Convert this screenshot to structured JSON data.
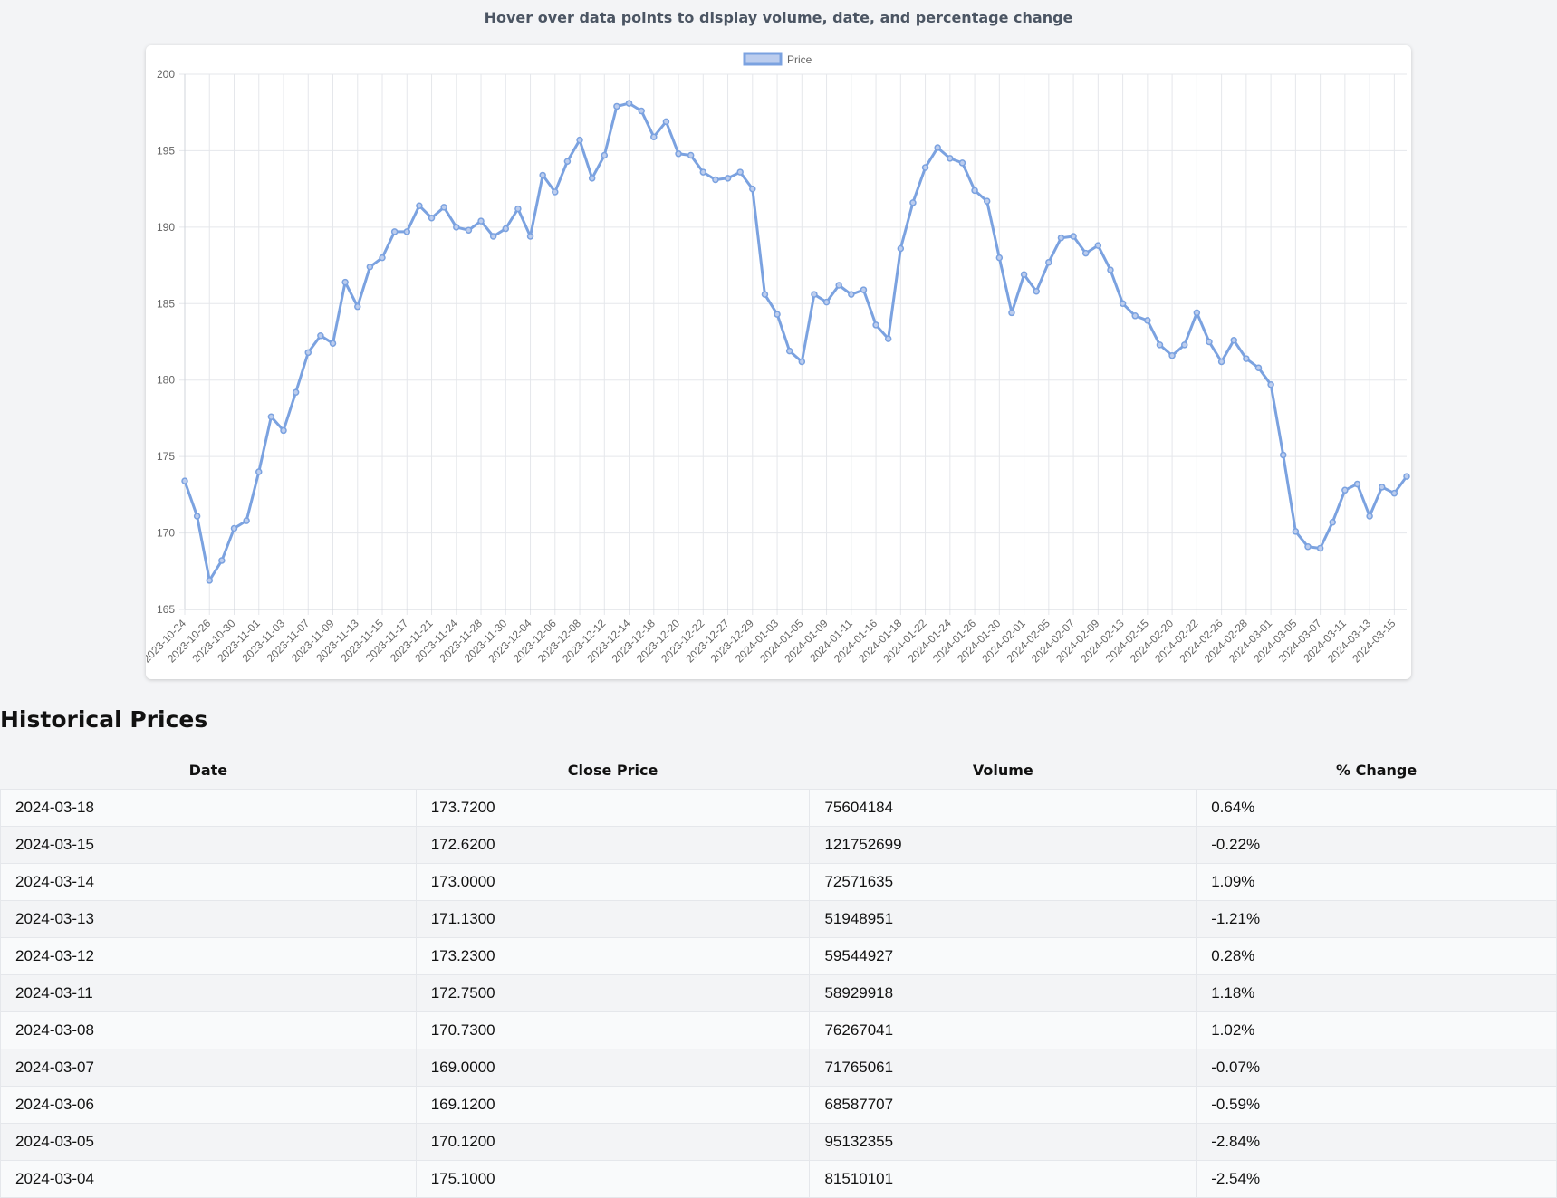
{
  "header": {
    "subtitle": "Hover over data points to display volume, date, and percentage change"
  },
  "section_title": "Historical Prices",
  "colors": {
    "line": "#7ba2e0",
    "legend_fill": "#bccdee",
    "grid": "#e5e7eb"
  },
  "chart_data": {
    "type": "line",
    "series": [
      {
        "name": "Price",
        "x": [
          "2023-10-24",
          "2023-10-25",
          "2023-10-26",
          "2023-10-27",
          "2023-10-30",
          "2023-10-31",
          "2023-11-01",
          "2023-11-02",
          "2023-11-03",
          "2023-11-06",
          "2023-11-07",
          "2023-11-08",
          "2023-11-09",
          "2023-11-10",
          "2023-11-13",
          "2023-11-14",
          "2023-11-15",
          "2023-11-16",
          "2023-11-17",
          "2023-11-20",
          "2023-11-21",
          "2023-11-22",
          "2023-11-24",
          "2023-11-27",
          "2023-11-28",
          "2023-11-29",
          "2023-11-30",
          "2023-12-01",
          "2023-12-04",
          "2023-12-05",
          "2023-12-06",
          "2023-12-07",
          "2023-12-08",
          "2023-12-11",
          "2023-12-12",
          "2023-12-13",
          "2023-12-14",
          "2023-12-15",
          "2023-12-18",
          "2023-12-19",
          "2023-12-20",
          "2023-12-21",
          "2023-12-22",
          "2023-12-26",
          "2023-12-27",
          "2023-12-28",
          "2023-12-29",
          "2024-01-02",
          "2024-01-03",
          "2024-01-04",
          "2024-01-05",
          "2024-01-08",
          "2024-01-09",
          "2024-01-10",
          "2024-01-11",
          "2024-01-12",
          "2024-01-16",
          "2024-01-17",
          "2024-01-18",
          "2024-01-19",
          "2024-01-22",
          "2024-01-23",
          "2024-01-24",
          "2024-01-25",
          "2024-01-26",
          "2024-01-29",
          "2024-01-30",
          "2024-01-31",
          "2024-02-01",
          "2024-02-02",
          "2024-02-05",
          "2024-02-06",
          "2024-02-07",
          "2024-02-08",
          "2024-02-09",
          "2024-02-12",
          "2024-02-13",
          "2024-02-14",
          "2024-02-15",
          "2024-02-16",
          "2024-02-20",
          "2024-02-21",
          "2024-02-22",
          "2024-02-23",
          "2024-02-26",
          "2024-02-27",
          "2024-02-28",
          "2024-02-29",
          "2024-03-01",
          "2024-03-04",
          "2024-03-05",
          "2024-03-06",
          "2024-03-07",
          "2024-03-08",
          "2024-03-11",
          "2024-03-12",
          "2024-03-13",
          "2024-03-14",
          "2024-03-15",
          "2024-03-18"
        ],
        "values": [
          173.4,
          171.1,
          166.9,
          168.2,
          170.3,
          170.8,
          174.0,
          177.6,
          176.7,
          179.2,
          181.8,
          182.9,
          182.4,
          186.4,
          184.8,
          187.4,
          188.0,
          189.7,
          189.7,
          191.4,
          190.6,
          191.3,
          190.0,
          189.8,
          190.4,
          189.4,
          189.9,
          191.2,
          189.4,
          193.4,
          192.3,
          194.3,
          195.7,
          193.2,
          194.7,
          197.9,
          198.1,
          197.6,
          195.9,
          196.9,
          194.8,
          194.7,
          193.6,
          193.1,
          193.2,
          193.6,
          192.5,
          185.6,
          184.3,
          181.9,
          181.2,
          185.6,
          185.1,
          186.2,
          185.6,
          185.9,
          183.6,
          182.7,
          188.6,
          191.6,
          193.9,
          195.2,
          194.5,
          194.2,
          192.4,
          191.7,
          188.0,
          184.4,
          186.9,
          185.8,
          187.7,
          189.3,
          189.4,
          188.3,
          188.8,
          187.2,
          185.0,
          184.2,
          183.9,
          182.3,
          181.6,
          182.3,
          184.4,
          182.5,
          181.2,
          182.6,
          181.4,
          180.8,
          179.7,
          175.1,
          170.1,
          169.1,
          169.0,
          170.7,
          172.8,
          173.2,
          171.1,
          173.0,
          172.6,
          173.7
        ]
      }
    ],
    "x_tick_labels": [
      "2023-10-24",
      "2023-10-26",
      "2023-10-30",
      "2023-11-01",
      "2023-11-03",
      "2023-11-07",
      "2023-11-09",
      "2023-11-13",
      "2023-11-15",
      "2023-11-17",
      "2023-11-21",
      "2023-11-24",
      "2023-11-28",
      "2023-11-30",
      "2023-12-04",
      "2023-12-06",
      "2023-12-08",
      "2023-12-12",
      "2023-12-14",
      "2023-12-18",
      "2023-12-20",
      "2023-12-22",
      "2023-12-27",
      "2023-12-29",
      "2024-01-03",
      "2024-01-05",
      "2024-01-09",
      "2024-01-11",
      "2024-01-16",
      "2024-01-18",
      "2024-01-22",
      "2024-01-24",
      "2024-01-26",
      "2024-01-30",
      "2024-02-01",
      "2024-02-05",
      "2024-02-07",
      "2024-02-09",
      "2024-02-13",
      "2024-02-15",
      "2024-02-20",
      "2024-02-22",
      "2024-02-26",
      "2024-02-28",
      "2024-03-01",
      "2024-03-05",
      "2024-03-07",
      "2024-03-11",
      "2024-03-13",
      "2024-03-15"
    ],
    "y_ticks": [
      165,
      170,
      175,
      180,
      185,
      190,
      195,
      200
    ],
    "ylim": [
      165,
      200
    ],
    "grid": true,
    "legend": "top-center",
    "title": "",
    "xlabel": "",
    "ylabel": ""
  },
  "table": {
    "headers": [
      "Date",
      "Close Price",
      "Volume",
      "% Change"
    ],
    "rows": [
      [
        "2024-03-18",
        "173.7200",
        "75604184",
        "0.64%"
      ],
      [
        "2024-03-15",
        "172.6200",
        "121752699",
        "-0.22%"
      ],
      [
        "2024-03-14",
        "173.0000",
        "72571635",
        "1.09%"
      ],
      [
        "2024-03-13",
        "171.1300",
        "51948951",
        "-1.21%"
      ],
      [
        "2024-03-12",
        "173.2300",
        "59544927",
        "0.28%"
      ],
      [
        "2024-03-11",
        "172.7500",
        "58929918",
        "1.18%"
      ],
      [
        "2024-03-08",
        "170.7300",
        "76267041",
        "1.02%"
      ],
      [
        "2024-03-07",
        "169.0000",
        "71765061",
        "-0.07%"
      ],
      [
        "2024-03-06",
        "169.1200",
        "68587707",
        "-0.59%"
      ],
      [
        "2024-03-05",
        "170.1200",
        "95132355",
        "-2.84%"
      ],
      [
        "2024-03-04",
        "175.1000",
        "81510101",
        "-2.54%"
      ]
    ]
  }
}
